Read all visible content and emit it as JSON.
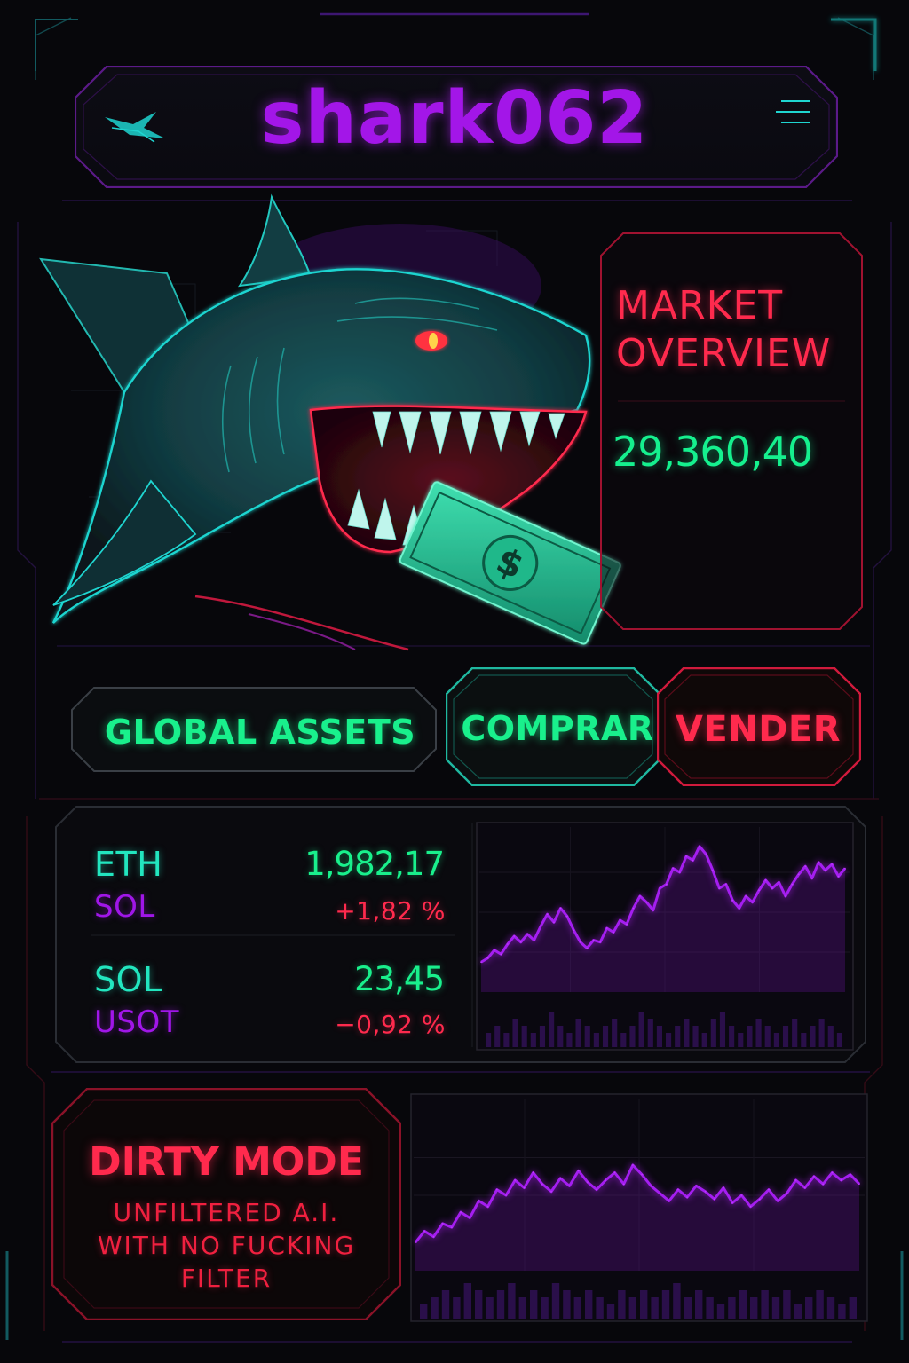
{
  "app": {
    "title": "shark062"
  },
  "header": {
    "logo_icon": "shark-fin-icon",
    "menu_icon": "menu-icon"
  },
  "market": {
    "title": "MARKET OVERVIEW",
    "value": "29,360,40"
  },
  "actions": {
    "global_assets_label": "GLOBAL ASSETS",
    "buy_label": "COMPRAR",
    "sell_label": "VENDER"
  },
  "tickers": [
    {
      "symbol": "ETH",
      "price": "1,982,17",
      "sub_symbol": "SOL",
      "change": "+1,82 %"
    },
    {
      "symbol": "SOL",
      "price": "23,45",
      "sub_symbol": "USOT",
      "change": "−0,92 %"
    }
  ],
  "dirty_mode": {
    "title": "DIRTY MODE",
    "subtitle": "UNFILTERED A.I.\nWITH NO FUCKING\nFILTER"
  },
  "colors": {
    "purple": "#a316e8",
    "green": "#19f08c",
    "teal": "#22e6bf",
    "red": "#ff2a4d",
    "background": "#07070b"
  },
  "chart_data": [
    {
      "type": "line",
      "series": [
        {
          "values": [
            3.0,
            3.4,
            4.2,
            3.8,
            4.8,
            5.6,
            5.0,
            5.8,
            5.2,
            6.6,
            7.8,
            7.0,
            8.4,
            7.6,
            6.2,
            5.0,
            4.4,
            5.2,
            5.0,
            6.4,
            6.0,
            7.2,
            6.8,
            8.4,
            9.6,
            9.0,
            8.2,
            10.4,
            10.8,
            12.4,
            12.0,
            13.6,
            13.2,
            14.6,
            13.8,
            12.2,
            10.4,
            10.8,
            9.2,
            8.4,
            9.6,
            9.0,
            10.2,
            11.2,
            10.4,
            11.0,
            9.6,
            10.8,
            11.8,
            12.6,
            11.4,
            13.0,
            12.2,
            12.8,
            11.6,
            12.4
          ]
        }
      ],
      "bars": [
        2,
        3,
        2,
        4,
        3,
        2,
        3,
        5,
        3,
        2,
        4,
        3,
        2,
        3,
        4,
        2,
        3,
        5,
        4,
        3,
        2,
        3,
        4,
        3,
        2,
        4,
        5,
        3,
        2,
        3,
        4,
        3,
        2,
        3,
        4,
        2,
        3,
        4,
        3,
        2
      ],
      "grid": true
    },
    {
      "type": "line",
      "series": [
        {
          "values": [
            3.0,
            4.2,
            3.6,
            5.0,
            4.6,
            6.2,
            5.6,
            7.4,
            6.8,
            8.6,
            8.0,
            9.6,
            8.8,
            10.4,
            9.2,
            8.4,
            9.8,
            9.0,
            10.6,
            9.4,
            8.6,
            9.6,
            10.4,
            9.2,
            11.2,
            10.2,
            9.0,
            8.2,
            7.4,
            8.6,
            7.8,
            9.0,
            8.4,
            7.6,
            8.8,
            7.2,
            8.0,
            6.8,
            7.6,
            8.6,
            7.4,
            8.2,
            9.6,
            8.8,
            10.0,
            9.2,
            10.4,
            9.6,
            10.2,
            9.2
          ]
        }
      ],
      "bars": [
        2,
        3,
        4,
        3,
        5,
        4,
        3,
        4,
        5,
        3,
        4,
        3,
        5,
        4,
        3,
        4,
        3,
        2,
        4,
        3,
        4,
        3,
        4,
        5,
        3,
        4,
        3,
        2,
        3,
        4,
        3,
        4,
        3,
        4,
        2,
        3,
        4,
        3,
        2,
        3
      ],
      "grid": true
    }
  ]
}
